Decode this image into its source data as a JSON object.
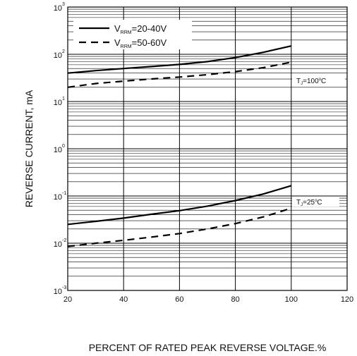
{
  "chart_data": {
    "type": "line",
    "title": "",
    "xlabel": "PERCENT OF RATED PEAK REVERSE VOLTAGE.%",
    "ylabel": "REVERSE CURRENT, mA",
    "xlim": [
      20,
      120
    ],
    "ylim": [
      0.001,
      1000
    ],
    "y_scale": "log",
    "grid": true,
    "legend_position": "top-left",
    "x_ticks": [
      "20",
      "40",
      "60",
      "80",
      "100",
      "120"
    ],
    "y_ticks": [
      {
        "base": "10",
        "exp": "-3"
      },
      {
        "base": "10",
        "exp": "-2"
      },
      {
        "base": "10",
        "exp": "-1"
      },
      {
        "base": "10",
        "exp": "0"
      },
      {
        "base": "10",
        "exp": "1"
      },
      {
        "base": "10",
        "exp": "2"
      },
      {
        "base": "10",
        "exp": "3"
      }
    ],
    "legend": [
      {
        "pre": "V",
        "sub": "RRM",
        "post": "=20-40V",
        "style": "solid"
      },
      {
        "pre": "V",
        "sub": "RRM",
        "post": "=50-60V",
        "style": "dashed"
      }
    ],
    "annotations": [
      {
        "pre": "T",
        "sub": "J",
        "mid": "=100",
        "sup": "o",
        "post": "C"
      },
      {
        "pre": "T",
        "sub": "J",
        "mid": "=25",
        "sup": "o",
        "post": "C"
      }
    ],
    "series": [
      {
        "style": "solid",
        "condition": "TJ=100C",
        "x": [
          20,
          30,
          40,
          50,
          60,
          70,
          80,
          90,
          100
        ],
        "y": [
          40,
          45,
          50,
          55,
          61,
          70,
          85,
          110,
          150
        ]
      },
      {
        "style": "dashed",
        "condition": "TJ=100C",
        "x": [
          20,
          30,
          40,
          50,
          60,
          70,
          80,
          90,
          100
        ],
        "y": [
          20,
          24,
          27,
          30,
          33,
          37,
          43,
          52,
          68
        ]
      },
      {
        "style": "solid",
        "condition": "TJ=25C",
        "x": [
          20,
          30,
          40,
          50,
          60,
          70,
          80,
          90,
          100
        ],
        "y": [
          0.025,
          0.029,
          0.034,
          0.041,
          0.049,
          0.061,
          0.08,
          0.11,
          0.165
        ]
      },
      {
        "style": "dashed",
        "condition": "TJ=25C",
        "x": [
          20,
          30,
          40,
          50,
          60,
          70,
          80,
          90,
          100
        ],
        "y": [
          0.0085,
          0.01,
          0.0115,
          0.0135,
          0.016,
          0.02,
          0.026,
          0.036,
          0.055
        ]
      }
    ]
  }
}
